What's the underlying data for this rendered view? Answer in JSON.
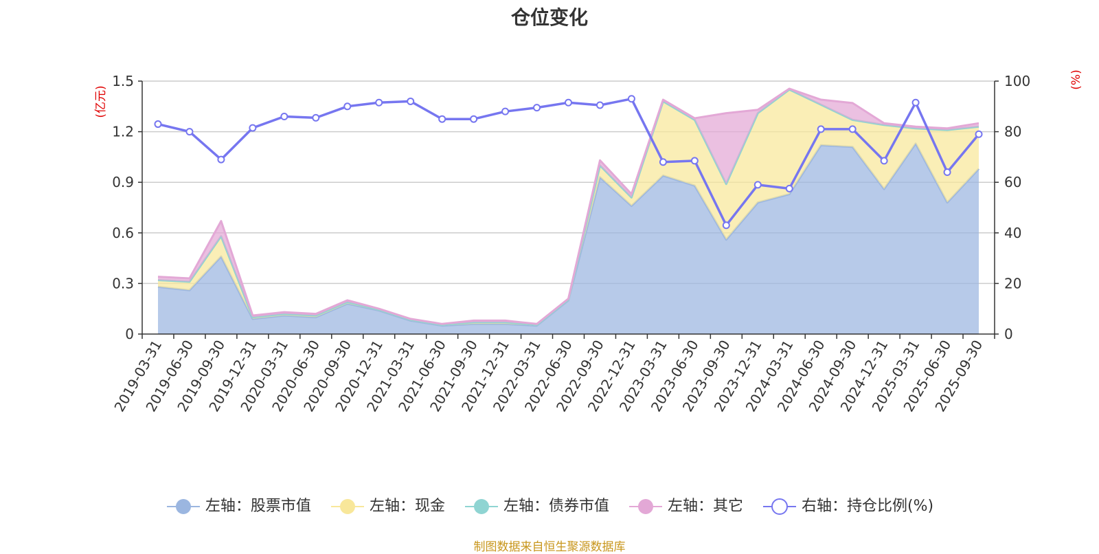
{
  "title": "仓位变化",
  "source": "制图数据来自恒生聚源数据库",
  "colors": {
    "stock": "#9bb6e0",
    "cash": "#f8e79a",
    "bond": "#8fd4d2",
    "other": "#e3a8d6",
    "ratio": "#7676f0",
    "source_text": "#c8961c",
    "unit": "#e00000",
    "grid": "#cccccc"
  },
  "chart_data": {
    "type": "area",
    "title": "仓位变化",
    "left_axis_unit": "(亿元)",
    "right_axis_unit": "(%)",
    "left_ylim": [
      0,
      1.5
    ],
    "left_ticks": [
      "0",
      "0.3",
      "0.6",
      "0.9",
      "1.2",
      "1.5"
    ],
    "right_ylim": [
      0,
      100
    ],
    "right_ticks": [
      "0",
      "20",
      "40",
      "60",
      "80",
      "100"
    ],
    "grid": true,
    "legend_position": "bottom",
    "categories": [
      "2019-03-31",
      "2019-06-30",
      "2019-09-30",
      "2019-12-31",
      "2020-03-31",
      "2020-06-30",
      "2020-09-30",
      "2020-12-31",
      "2021-03-31",
      "2021-06-30",
      "2021-09-30",
      "2021-12-31",
      "2022-03-31",
      "2022-06-30",
      "2022-09-30",
      "2022-12-31",
      "2023-03-31",
      "2023-06-30",
      "2023-09-30",
      "2023-12-31",
      "2024-03-31",
      "2024-06-30",
      "2024-09-30",
      "2024-12-31",
      "2025-03-31",
      "2025-06-30",
      "2025-09-30"
    ],
    "series": [
      {
        "name": "左轴：股票市值",
        "axis": "left",
        "stacked": true,
        "values": [
          0.28,
          0.26,
          0.46,
          0.09,
          0.11,
          0.1,
          0.18,
          0.14,
          0.08,
          0.05,
          0.06,
          0.06,
          0.05,
          0.2,
          0.93,
          0.76,
          0.94,
          0.88,
          0.56,
          0.78,
          0.83,
          1.12,
          1.11,
          0.86,
          1.13,
          0.78,
          0.98
        ]
      },
      {
        "name": "左轴：现金",
        "axis": "left",
        "stacked": true,
        "values": [
          0.04,
          0.05,
          0.12,
          0.01,
          0.01,
          0.01,
          0.01,
          0.005,
          0.005,
          0.005,
          0.01,
          0.01,
          0.005,
          0.005,
          0.07,
          0.05,
          0.44,
          0.39,
          0.33,
          0.53,
          0.62,
          0.24,
          0.16,
          0.38,
          0.09,
          0.43,
          0.25
        ]
      },
      {
        "name": "左轴：债券市值",
        "axis": "left",
        "stacked": true,
        "values": [
          0,
          0,
          0,
          0,
          0,
          0,
          0,
          0,
          0,
          0,
          0,
          0,
          0,
          0,
          0,
          0,
          0,
          0,
          0,
          0,
          0,
          0,
          0,
          0,
          0,
          0,
          0
        ]
      },
      {
        "name": "左轴：其它",
        "axis": "left",
        "stacked": true,
        "values": [
          0.02,
          0.02,
          0.09,
          0.01,
          0.01,
          0.01,
          0.01,
          0.005,
          0.005,
          0.005,
          0.01,
          0.01,
          0.005,
          0.005,
          0.03,
          0.02,
          0.01,
          0.01,
          0.42,
          0.02,
          0.005,
          0.03,
          0.1,
          0.01,
          0.01,
          0.01,
          0.02
        ]
      },
      {
        "name": "右轴：持仓比例(%)",
        "axis": "right",
        "type": "line",
        "values": [
          83,
          80,
          69,
          81.5,
          86,
          85.5,
          90,
          91.5,
          92,
          85,
          85,
          88,
          89.5,
          91.5,
          90.5,
          93,
          68,
          68.5,
          43,
          59,
          57.5,
          81,
          81,
          68.5,
          91.5,
          64,
          79
        ]
      }
    ]
  }
}
